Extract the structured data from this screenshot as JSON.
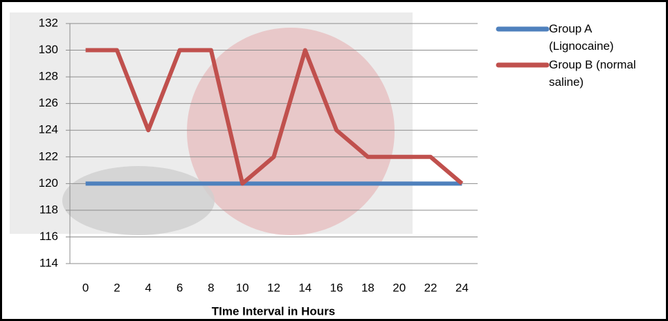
{
  "chart_data": {
    "type": "line",
    "x_label": "TIme Interval in Hours",
    "categories": [
      "0",
      "2",
      "4",
      "6",
      "8",
      "10",
      "12",
      "14",
      "16",
      "18",
      "20",
      "22",
      "24"
    ],
    "series": [
      {
        "name": "Group A (Lignocaine)",
        "color": "#4f81bd",
        "values": [
          120,
          120,
          120,
          120,
          120,
          120,
          120,
          120,
          120,
          120,
          120,
          120,
          120
        ]
      },
      {
        "name": "Group B (normal saline)",
        "color": "#c0504d",
        "values": [
          130,
          130,
          124,
          130,
          130,
          120,
          122,
          130,
          124,
          122,
          122,
          122,
          120
        ]
      }
    ],
    "ylim": [
      114,
      132
    ],
    "yticks": [
      114,
      116,
      118,
      120,
      122,
      124,
      126,
      128,
      130,
      132
    ],
    "grid": true,
    "legend": "right"
  }
}
